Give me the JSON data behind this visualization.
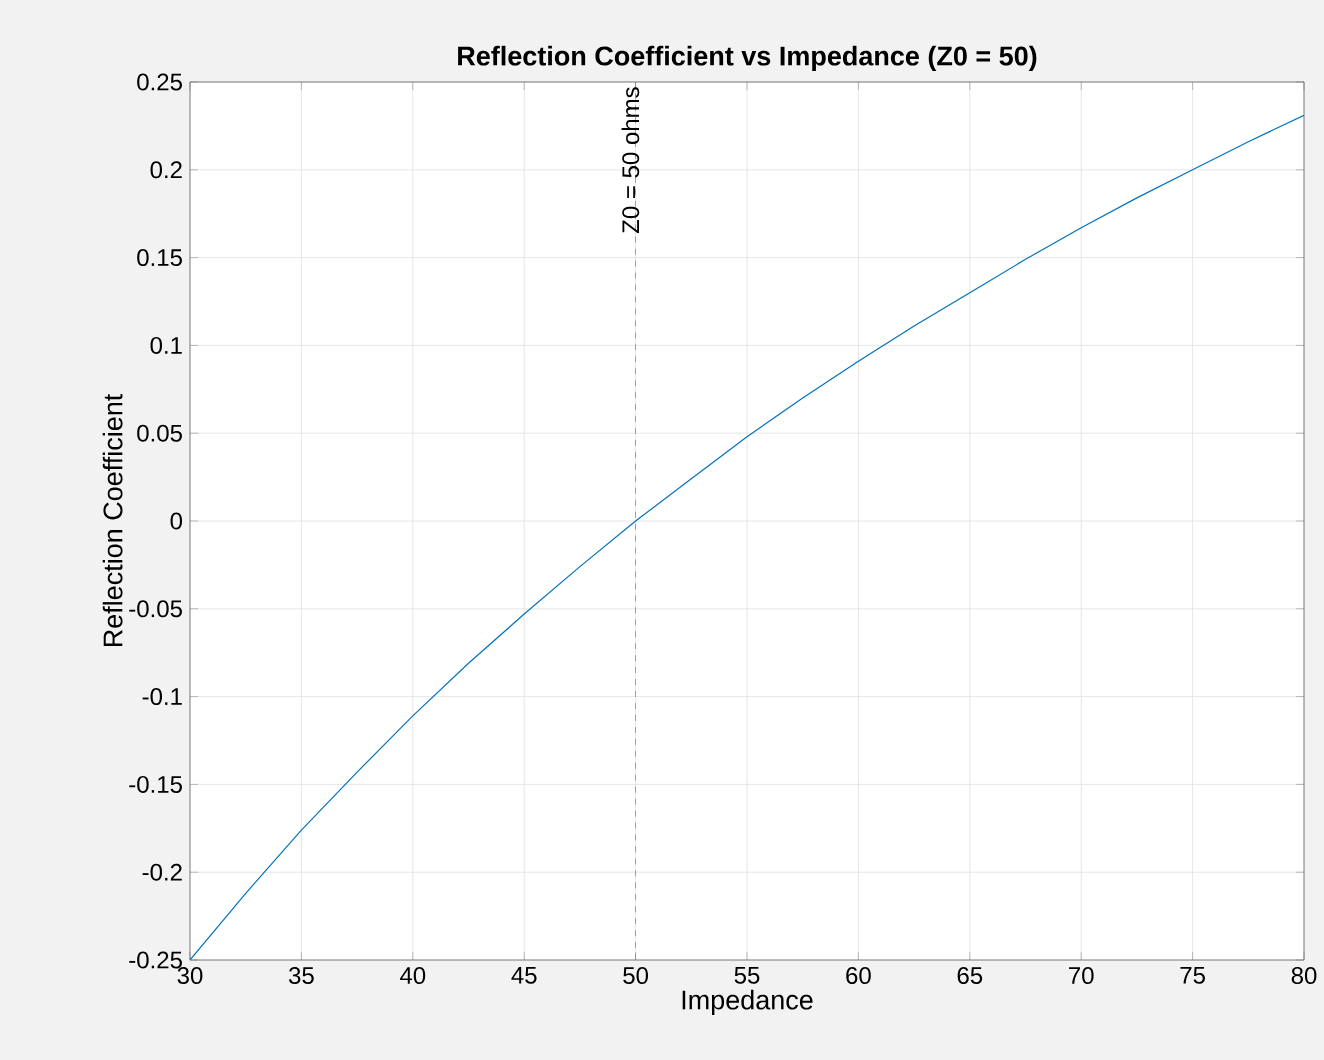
{
  "chart_data": {
    "type": "line",
    "title": "Reflection Coefficient vs Impedance (Z0 = 50)",
    "xlabel": "Impedance",
    "ylabel": "Reflection Coefficient",
    "x": [
      30,
      32.5,
      35,
      37.5,
      40,
      42.5,
      45,
      47.5,
      50,
      52.5,
      55,
      57.5,
      60,
      62.5,
      65,
      67.5,
      70,
      72.5,
      75,
      77.5,
      80
    ],
    "series": [
      {
        "color": "#0072bd",
        "values": [
          -0.25,
          -0.212,
          -0.176,
          -0.143,
          -0.111,
          -0.081,
          -0.053,
          -0.026,
          0,
          0.024,
          0.048,
          0.07,
          0.091,
          0.111,
          0.13,
          0.149,
          0.167,
          0.184,
          0.2,
          0.216,
          0.231
        ]
      }
    ],
    "xlim": [
      30,
      80
    ],
    "xticks": [
      30,
      35,
      40,
      45,
      50,
      55,
      60,
      65,
      70,
      75,
      80
    ],
    "ylim": [
      -0.25,
      0.25
    ],
    "yticks": [
      -0.25,
      -0.2,
      -0.15,
      -0.1,
      -0.05,
      0,
      0.05,
      0.1,
      0.15,
      0.2,
      0.25
    ],
    "ref_lines": [
      {
        "axis": "x",
        "value": 50,
        "label": "Z0 = 50 ohms",
        "color": "#808080",
        "line_style": "dashed"
      }
    ],
    "grid": true,
    "marker": "none",
    "line_style": "solid"
  }
}
